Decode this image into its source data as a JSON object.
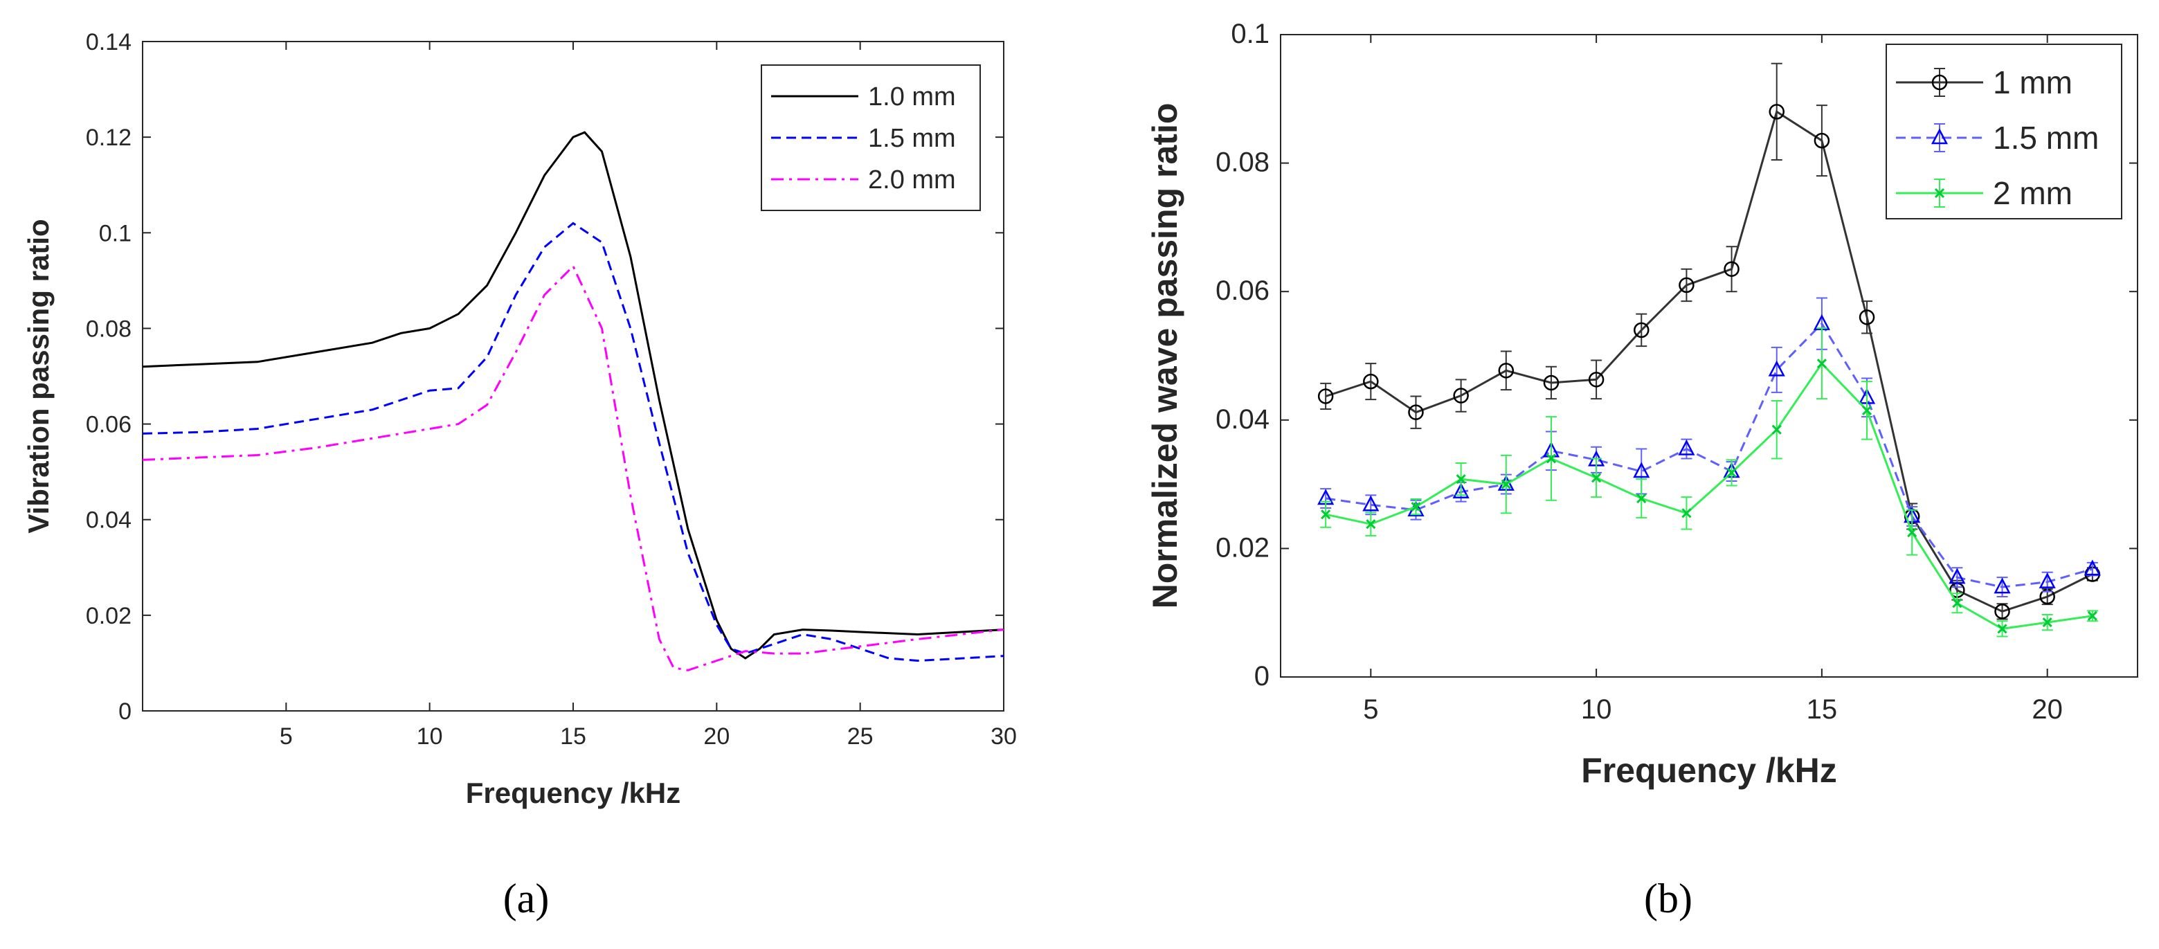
{
  "chart_data": [
    {
      "type": "line",
      "panel_label": "(a)",
      "xlabel": "Frequency /kHz",
      "ylabel": "Vibration passing ratio",
      "xlim": [
        0,
        30
      ],
      "ylim": [
        0,
        0.14
      ],
      "xticks": [
        "5",
        "10",
        "15",
        "20",
        "25",
        "30"
      ],
      "yticks": [
        "0",
        "0.02",
        "0.04",
        "0.06",
        "0.08",
        "0.1",
        "0.12",
        "0.14"
      ],
      "grid": false,
      "legend_position": "top-right",
      "series": [
        {
          "name": "1.0 mm",
          "color": "#000000",
          "dash": "solid",
          "x": [
            0,
            2,
            4,
            6,
            8,
            9,
            10,
            11,
            12,
            13,
            14,
            15,
            15.4,
            16,
            17,
            18,
            19,
            20,
            20.5,
            21,
            21.5,
            22,
            23,
            24,
            25,
            27,
            30
          ],
          "y": [
            0.072,
            0.0725,
            0.073,
            0.075,
            0.077,
            0.079,
            0.08,
            0.083,
            0.089,
            0.1,
            0.112,
            0.12,
            0.121,
            0.117,
            0.095,
            0.065,
            0.038,
            0.019,
            0.013,
            0.011,
            0.013,
            0.016,
            0.017,
            0.0168,
            0.0165,
            0.016,
            0.017
          ]
        },
        {
          "name": "1.5 mm",
          "color": "#0000ff",
          "dash": "dashed",
          "x": [
            0,
            2,
            4,
            6,
            8,
            9,
            10,
            11,
            12,
            13,
            14,
            15,
            16,
            17,
            18,
            19,
            20,
            20.5,
            21,
            22,
            23,
            24,
            25,
            26,
            27,
            28,
            30
          ],
          "y": [
            0.058,
            0.0583,
            0.059,
            0.061,
            0.063,
            0.065,
            0.067,
            0.0675,
            0.074,
            0.087,
            0.097,
            0.102,
            0.098,
            0.08,
            0.056,
            0.033,
            0.018,
            0.013,
            0.012,
            0.014,
            0.016,
            0.015,
            0.013,
            0.011,
            0.0105,
            0.0108,
            0.0115
          ]
        },
        {
          "name": "2.0 mm",
          "color": "#ff00ff",
          "dash": "dashdot",
          "x": [
            0,
            2,
            4,
            6,
            8,
            9,
            10,
            11,
            12,
            13,
            14,
            15,
            16,
            17,
            18,
            18.5,
            19,
            20,
            21,
            22,
            23,
            25,
            27,
            30
          ],
          "y": [
            0.0525,
            0.053,
            0.0535,
            0.055,
            0.057,
            0.058,
            0.059,
            0.06,
            0.064,
            0.075,
            0.087,
            0.093,
            0.08,
            0.045,
            0.015,
            0.009,
            0.0085,
            0.0105,
            0.0125,
            0.012,
            0.012,
            0.0135,
            0.015,
            0.017
          ]
        }
      ]
    },
    {
      "type": "line",
      "panel_label": "(b)",
      "xlabel": "Frequency /kHz",
      "ylabel": "Normalized wave passing ratio",
      "xlim": [
        3,
        22
      ],
      "ylim": [
        0,
        0.1
      ],
      "xticks": [
        "5",
        "10",
        "15",
        "20"
      ],
      "yticks": [
        "0",
        "0.02",
        "0.04",
        "0.06",
        "0.08",
        "0.1"
      ],
      "grid": false,
      "legend_position": "top-right",
      "error_bars": true,
      "series": [
        {
          "name": "1 mm",
          "color": "#000000",
          "line_color": "#333333",
          "dash": "solid",
          "marker": "circle",
          "x": [
            4,
            5,
            6,
            7,
            8,
            9,
            10,
            11,
            12,
            13,
            14,
            15,
            16,
            17,
            18,
            19,
            20,
            21
          ],
          "y": [
            0.0437,
            0.046,
            0.0412,
            0.0438,
            0.0477,
            0.0458,
            0.0463,
            0.054,
            0.061,
            0.0635,
            0.088,
            0.0835,
            0.056,
            0.025,
            0.0135,
            0.0102,
            0.0125,
            0.016
          ],
          "err": [
            0.002,
            0.0028,
            0.0025,
            0.0025,
            0.003,
            0.0025,
            0.003,
            0.0025,
            0.0025,
            0.0035,
            0.0075,
            0.0055,
            0.0025,
            0.002,
            0.0015,
            0.0012,
            0.0012,
            0.001
          ]
        },
        {
          "name": "1.5 mm",
          "color": "#0000ff",
          "line_color": "#5f5fff",
          "dash": "dashed",
          "marker": "triangle",
          "x": [
            4,
            5,
            6,
            7,
            8,
            9,
            10,
            11,
            12,
            13,
            14,
            15,
            16,
            17,
            18,
            19,
            20,
            21
          ],
          "y": [
            0.0278,
            0.0268,
            0.026,
            0.0288,
            0.03,
            0.0352,
            0.0338,
            0.032,
            0.0355,
            0.032,
            0.0478,
            0.055,
            0.0435,
            0.025,
            0.0155,
            0.014,
            0.0148,
            0.0168
          ],
          "err": [
            0.0015,
            0.0015,
            0.0015,
            0.0015,
            0.0015,
            0.003,
            0.002,
            0.0035,
            0.0015,
            0.0015,
            0.0035,
            0.004,
            0.003,
            0.0015,
            0.0015,
            0.0015,
            0.0015,
            0.001
          ]
        },
        {
          "name": "2 mm",
          "color": "#00cc33",
          "line_color": "#33ee55",
          "dash": "solid",
          "marker": "x",
          "x": [
            4,
            5,
            6,
            7,
            8,
            9,
            10,
            11,
            12,
            13,
            14,
            15,
            16,
            17,
            18,
            19,
            20,
            21
          ],
          "y": [
            0.0253,
            0.0238,
            0.0265,
            0.0308,
            0.03,
            0.034,
            0.031,
            0.0278,
            0.0255,
            0.0318,
            0.0385,
            0.0488,
            0.0415,
            0.0225,
            0.0115,
            0.0075,
            0.0085,
            0.0095
          ],
          "err": [
            0.002,
            0.0018,
            0.0012,
            0.0025,
            0.0045,
            0.0065,
            0.003,
            0.003,
            0.0025,
            0.002,
            0.0045,
            0.0055,
            0.0045,
            0.0035,
            0.0015,
            0.0012,
            0.0012,
            0.0008
          ]
        }
      ]
    }
  ]
}
